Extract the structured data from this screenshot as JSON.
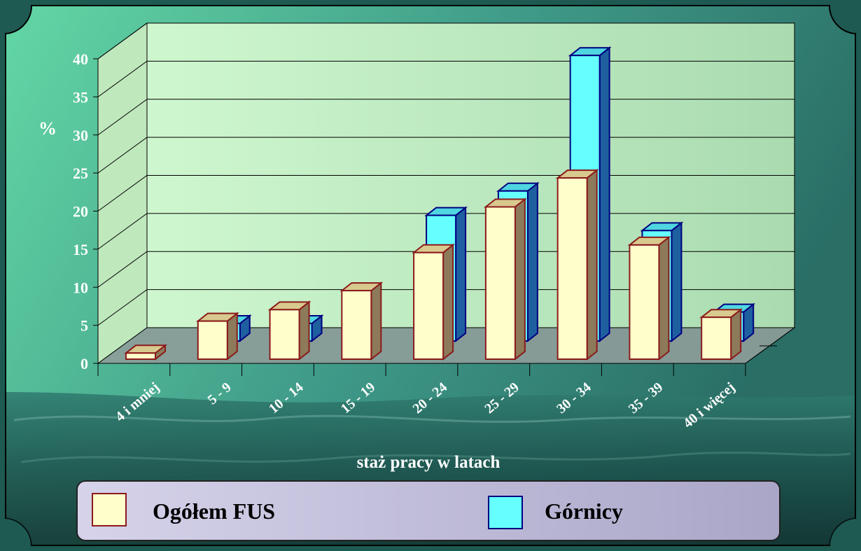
{
  "chart_data": {
    "type": "bar",
    "subtype": "3d-clustered",
    "categories": [
      "4 i mniej",
      "5 - 9",
      "10 - 14",
      "15 - 19",
      "20 - 24",
      "25 - 29",
      "30 - 34",
      "35 - 39",
      "40 i więcej"
    ],
    "series": [
      {
        "name": "Ogółem FUS",
        "values": [
          0.8,
          5.0,
          6.5,
          9.0,
          14.0,
          20.0,
          23.8,
          15.0,
          5.5
        ],
        "color": "#ffffcc",
        "edge": "#8b1a1a"
      },
      {
        "name": "Górnicy",
        "values": [
          0.0,
          2.3,
          2.3,
          0.0,
          16.5,
          19.7,
          37.5,
          14.5,
          3.8
        ],
        "color": "#66ffff",
        "edge": "#000080"
      }
    ],
    "ylabel": "%",
    "xlabel": "staż pracy w latach",
    "ylim": [
      0,
      40
    ],
    "yticks": [
      0,
      5,
      10,
      15,
      20,
      25,
      30,
      35,
      40
    ],
    "grid": true,
    "legend": "bottom",
    "colors": {
      "wall": "#c8f2c8",
      "floor": "#8f9e9a",
      "frame": "#000000",
      "legend_bg": "#c8c6e0",
      "tick_text": "#ffffff"
    }
  }
}
